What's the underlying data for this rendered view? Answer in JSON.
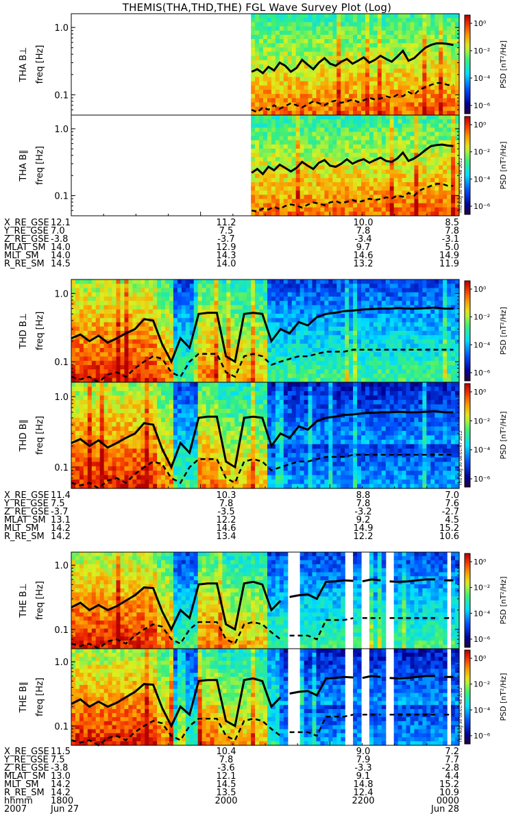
{
  "title": "THEMIS(THA,THD,THE) FGL Wave Survey Plot (Log)",
  "colorbar": {
    "label": "PSD [nT²/Hz]",
    "ticks": [
      "10⁰",
      "10⁻²",
      "10⁻⁴",
      "10⁻⁶"
    ]
  },
  "yticks": [
    "1.0",
    "0.1"
  ],
  "panels": [
    {
      "probe": "THA",
      "component": "B⊥",
      "ylabel_top": "THA B⊥",
      "ylabel_bottom": "freq [Hz]",
      "stamp": ""
    },
    {
      "probe": "THA",
      "component": "B∥",
      "ylabel_top": "THA B∥",
      "ylabel_bottom": "freq [Hz]",
      "stamp": "Thu Aug 30 08:01:48 2012"
    },
    {
      "probe": "THD",
      "component": "B⊥",
      "ylabel_top": "THD B⊥",
      "ylabel_bottom": "freq [Hz]",
      "stamp": ""
    },
    {
      "probe": "THD",
      "component": "B∥",
      "ylabel_top": "THD B∥",
      "ylabel_bottom": "freq [Hz]",
      "stamp": "Thu Aug 30 08:01:47 2012"
    },
    {
      "probe": "THE",
      "component": "B⊥",
      "ylabel_top": "THE B⊥",
      "ylabel_bottom": "freq [Hz]",
      "stamp": ""
    },
    {
      "probe": "THE",
      "component": "B∥",
      "ylabel_top": "THE B∥",
      "ylabel_bottom": "freq [Hz]",
      "stamp": "Thu Aug 30 08:01:48 2012"
    }
  ],
  "ephemeris": [
    {
      "probe": "THA",
      "rows": [
        {
          "label": "X_RE_GSE",
          "values": [
            "12.1",
            "11.2",
            "10.0",
            "8.5"
          ]
        },
        {
          "label": "Y_RE_GSE",
          "values": [
            "7.0",
            "7.5",
            "7.8",
            "7.8"
          ]
        },
        {
          "label": "Z_RE_GSE",
          "values": [
            "-3.8",
            "-3.7",
            "-3.4",
            "-3.1"
          ]
        },
        {
          "label": "MLAT_SM",
          "values": [
            "14.0",
            "12.9",
            "9.7",
            "5.0"
          ]
        },
        {
          "label": "MLT_SM",
          "values": [
            "14.0",
            "14.3",
            "14.6",
            "14.9"
          ]
        },
        {
          "label": "R_RE_SM",
          "values": [
            "14.5",
            "14.0",
            "13.2",
            "11.9"
          ]
        }
      ]
    },
    {
      "probe": "THD",
      "rows": [
        {
          "label": "X_RE_GSE",
          "values": [
            "11.4",
            "10.3",
            "8.8",
            "7.0"
          ]
        },
        {
          "label": "Y_RE_GSE",
          "values": [
            "7.5",
            "7.8",
            "7.8",
            "7.6"
          ]
        },
        {
          "label": "Z_RE_GSE",
          "values": [
            "-3.7",
            "-3.5",
            "-3.2",
            "-2.7"
          ]
        },
        {
          "label": "MLAT_SM",
          "values": [
            "13.1",
            "12.2",
            "9.2",
            "4.5"
          ]
        },
        {
          "label": "MLT_SM",
          "values": [
            "14.2",
            "14.6",
            "14.9",
            "15.2"
          ]
        },
        {
          "label": "R_RE_SM",
          "values": [
            "14.2",
            "13.4",
            "12.2",
            "10.6"
          ]
        }
      ]
    },
    {
      "probe": "THE",
      "rows": [
        {
          "label": "X_RE_GSE",
          "values": [
            "11.5",
            "10.4",
            "9.0",
            "7.2"
          ]
        },
        {
          "label": "Y_RE_GSE",
          "values": [
            "7.5",
            "7.8",
            "7.9",
            "7.7"
          ]
        },
        {
          "label": "Z_RE_GSE",
          "values": [
            "-3.8",
            "-3.6",
            "-3.3",
            "-2.8"
          ]
        },
        {
          "label": "MLAT_SM",
          "values": [
            "13.0",
            "12.1",
            "9.1",
            "4.4"
          ]
        },
        {
          "label": "MLT_SM",
          "values": [
            "14.2",
            "14.5",
            "14.8",
            "15.2"
          ]
        },
        {
          "label": "R_RE_SM",
          "values": [
            "14.2",
            "13.5",
            "12.4",
            "10.9"
          ]
        },
        {
          "label": "hhmm",
          "values": [
            "1800",
            "2000",
            "2200",
            "0000"
          ]
        },
        {
          "label": "2007",
          "values": [
            "Jun 27",
            "",
            "",
            "Jun 28"
          ]
        }
      ]
    }
  ],
  "chart_data": {
    "type": "heatmap",
    "title": "THEMIS(THA,THD,THE) FGL Wave Survey Plot (Log)",
    "x_tick_labels": [
      "1800",
      "2000",
      "2200",
      "0000"
    ],
    "y_scale": "log",
    "y_tick_labels": [
      "1.0",
      "0.1"
    ],
    "ylim": [
      0.05,
      1.6
    ],
    "color_scale": "log",
    "color_range": [
      1e-07,
      10
    ],
    "colorbar_label": "PSD [nT²/Hz]",
    "series_styles": {
      "solid_line": "black solid",
      "dashed_line": "black dashed"
    },
    "panels": [
      {
        "name": "THA B⊥",
        "data_start": 0.465,
        "solid_line": [
          0.22,
          0.24,
          0.21,
          0.26,
          0.23,
          0.3,
          0.27,
          0.22,
          0.25,
          0.33,
          0.28,
          0.24,
          0.3,
          0.35,
          0.29,
          0.27,
          0.31,
          0.34,
          0.29,
          0.32,
          0.36,
          0.3,
          0.33,
          0.38,
          0.34,
          0.31,
          0.37,
          0.45,
          0.32,
          0.35,
          0.42,
          0.5,
          0.55,
          0.58,
          0.58,
          0.57,
          0.55
        ],
        "dashed_line": [
          0.06,
          0.055,
          0.065,
          0.06,
          0.07,
          0.062,
          0.068,
          0.075,
          0.07,
          0.065,
          0.072,
          0.08,
          0.075,
          0.07,
          0.078,
          0.082,
          0.076,
          0.08,
          0.085,
          0.078,
          0.083,
          0.09,
          0.085,
          0.088,
          0.095,
          0.09,
          0.1,
          0.095,
          0.11,
          0.1,
          0.12,
          0.13,
          0.14,
          0.15,
          0.15,
          0.14,
          0.14
        ],
        "gaps": []
      },
      {
        "name": "THA B∥",
        "data_start": 0.465,
        "solid_line": [
          0.22,
          0.25,
          0.21,
          0.27,
          0.24,
          0.29,
          0.26,
          0.23,
          0.26,
          0.32,
          0.28,
          0.25,
          0.31,
          0.34,
          0.28,
          0.27,
          0.3,
          0.35,
          0.3,
          0.33,
          0.35,
          0.31,
          0.34,
          0.37,
          0.33,
          0.32,
          0.36,
          0.44,
          0.33,
          0.36,
          0.41,
          0.48,
          0.55,
          0.57,
          0.58,
          0.56,
          0.55
        ],
        "dashed_line": [
          0.06,
          0.058,
          0.064,
          0.062,
          0.068,
          0.063,
          0.07,
          0.074,
          0.071,
          0.066,
          0.073,
          0.079,
          0.076,
          0.072,
          0.079,
          0.083,
          0.077,
          0.081,
          0.086,
          0.08,
          0.084,
          0.09,
          0.086,
          0.089,
          0.094,
          0.091,
          0.1,
          0.096,
          0.11,
          0.1,
          0.12,
          0.13,
          0.14,
          0.15,
          0.15,
          0.14,
          0.14
        ],
        "gaps": []
      },
      {
        "name": "THD B⊥",
        "data_start": 0.0,
        "solid_line": [
          0.22,
          0.25,
          0.2,
          0.24,
          0.19,
          0.22,
          0.26,
          0.3,
          0.42,
          0.4,
          0.18,
          0.1,
          0.22,
          0.16,
          0.5,
          0.52,
          0.52,
          0.12,
          0.1,
          0.5,
          0.52,
          0.5,
          0.2,
          0.3,
          0.26,
          0.38,
          0.34,
          0.45,
          0.5,
          0.52,
          0.55,
          0.56,
          0.58,
          0.59,
          0.6,
          0.6,
          0.61,
          0.6,
          0.6,
          0.61,
          0.62,
          0.6,
          0.6
        ],
        "dashed_line": [
          0.06,
          0.055,
          0.06,
          0.05,
          0.065,
          0.07,
          0.06,
          0.08,
          0.1,
          0.12,
          0.11,
          0.07,
          0.06,
          0.1,
          0.13,
          0.13,
          0.13,
          0.07,
          0.06,
          0.12,
          0.13,
          0.12,
          0.09,
          0.1,
          0.11,
          0.12,
          0.12,
          0.13,
          0.14,
          0.14,
          0.14,
          0.15,
          0.15,
          0.15,
          0.15,
          0.15,
          0.15,
          0.15,
          0.15,
          0.15,
          0.15,
          0.15,
          0.15
        ],
        "gaps": []
      },
      {
        "name": "THD B∥",
        "data_start": 0.0,
        "solid_line": [
          0.22,
          0.25,
          0.2,
          0.24,
          0.19,
          0.22,
          0.26,
          0.3,
          0.42,
          0.4,
          0.18,
          0.1,
          0.22,
          0.16,
          0.5,
          0.52,
          0.52,
          0.12,
          0.1,
          0.5,
          0.52,
          0.5,
          0.2,
          0.3,
          0.26,
          0.38,
          0.34,
          0.45,
          0.5,
          0.52,
          0.55,
          0.56,
          0.58,
          0.59,
          0.6,
          0.6,
          0.61,
          0.6,
          0.6,
          0.61,
          0.62,
          0.6,
          0.6
        ],
        "dashed_line": [
          0.06,
          0.055,
          0.06,
          0.05,
          0.065,
          0.07,
          0.06,
          0.08,
          0.1,
          0.12,
          0.11,
          0.07,
          0.06,
          0.1,
          0.13,
          0.13,
          0.13,
          0.07,
          0.06,
          0.12,
          0.13,
          0.12,
          0.09,
          0.1,
          0.11,
          0.12,
          0.12,
          0.13,
          0.14,
          0.14,
          0.14,
          0.15,
          0.15,
          0.15,
          0.15,
          0.15,
          0.15,
          0.15,
          0.15,
          0.15,
          0.15,
          0.15,
          0.15
        ],
        "gaps": []
      },
      {
        "name": "THE B⊥",
        "data_start": 0.0,
        "solid_line": [
          0.22,
          0.26,
          0.2,
          0.24,
          0.2,
          0.23,
          0.28,
          0.34,
          0.45,
          0.44,
          0.19,
          0.1,
          0.2,
          0.15,
          0.5,
          0.52,
          0.52,
          0.12,
          0.1,
          0.52,
          0.55,
          0.5,
          0.2,
          0.28,
          0.32,
          0.34,
          0.35,
          0.3,
          0.55,
          0.56,
          0.58,
          0.57,
          0.56,
          0.6,
          0.58,
          0.56,
          0.55,
          0.56,
          0.58,
          0.6,
          0.6,
          0.58,
          0.58
        ],
        "dashed_line": [
          0.06,
          0.055,
          0.06,
          0.05,
          0.065,
          0.07,
          0.06,
          0.08,
          0.1,
          0.12,
          0.11,
          0.07,
          0.06,
          0.1,
          0.13,
          0.13,
          0.13,
          0.07,
          0.06,
          0.12,
          0.13,
          0.12,
          0.09,
          0.07,
          0.08,
          0.08,
          0.08,
          0.07,
          0.14,
          0.14,
          0.14,
          0.15,
          0.15,
          0.15,
          0.15,
          0.15,
          0.15,
          0.15,
          0.15,
          0.15,
          0.15,
          0.15,
          0.15
        ],
        "gaps": [
          [
            0.555,
            0.585
          ],
          [
            0.705,
            0.72
          ],
          [
            0.745,
            0.76
          ],
          [
            0.81,
            0.83
          ],
          [
            0.96,
            0.97
          ]
        ]
      },
      {
        "name": "THE B∥",
        "data_start": 0.0,
        "solid_line": [
          0.22,
          0.26,
          0.2,
          0.24,
          0.2,
          0.23,
          0.28,
          0.34,
          0.45,
          0.44,
          0.19,
          0.1,
          0.2,
          0.15,
          0.5,
          0.52,
          0.52,
          0.12,
          0.1,
          0.52,
          0.55,
          0.5,
          0.2,
          0.28,
          0.32,
          0.34,
          0.35,
          0.3,
          0.55,
          0.56,
          0.58,
          0.57,
          0.56,
          0.6,
          0.58,
          0.56,
          0.55,
          0.56,
          0.58,
          0.6,
          0.6,
          0.58,
          0.58
        ],
        "dashed_line": [
          0.06,
          0.055,
          0.06,
          0.05,
          0.065,
          0.07,
          0.06,
          0.08,
          0.1,
          0.12,
          0.11,
          0.07,
          0.06,
          0.1,
          0.13,
          0.13,
          0.13,
          0.07,
          0.06,
          0.12,
          0.13,
          0.12,
          0.09,
          0.07,
          0.08,
          0.08,
          0.08,
          0.07,
          0.14,
          0.14,
          0.14,
          0.15,
          0.15,
          0.15,
          0.15,
          0.15,
          0.15,
          0.15,
          0.15,
          0.15,
          0.15,
          0.15,
          0.15
        ],
        "gaps": [
          [
            0.555,
            0.585
          ],
          [
            0.705,
            0.72
          ],
          [
            0.745,
            0.76
          ],
          [
            0.81,
            0.83
          ],
          [
            0.96,
            0.97
          ]
        ]
      }
    ]
  }
}
